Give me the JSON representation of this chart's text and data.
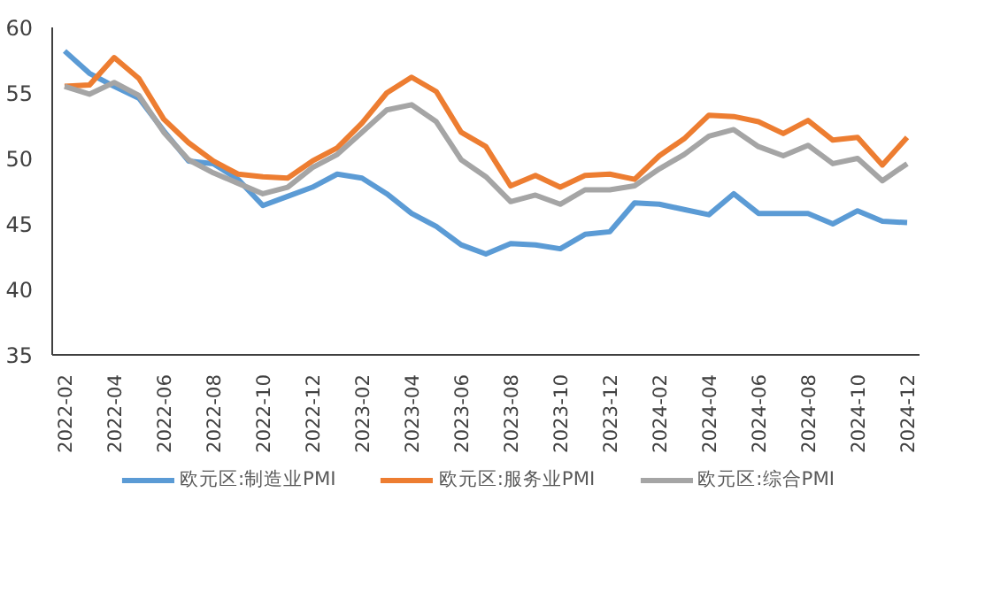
{
  "chart_data": {
    "type": "line",
    "categories": [
      "2022-02",
      null,
      "2022-04",
      null,
      "2022-06",
      null,
      "2022-08",
      null,
      "2022-10",
      null,
      "2022-12",
      null,
      "2023-02",
      null,
      "2023-04",
      null,
      "2023-06",
      null,
      "2023-08",
      null,
      "2023-10",
      null,
      "2023-12",
      null,
      "2024-02",
      null,
      "2024-04",
      null,
      "2024-06",
      null,
      "2024-08",
      null,
      "2024-10",
      null,
      "2024-12"
    ],
    "series": [
      {
        "name": "欧元区:制造业PMI",
        "color": "#5b9bd5",
        "values": [
          58.2,
          56.5,
          55.5,
          54.6,
          52.1,
          49.8,
          49.6,
          48.4,
          46.4,
          47.1,
          47.8,
          48.8,
          48.5,
          47.3,
          45.8,
          44.8,
          43.4,
          42.7,
          43.5,
          43.4,
          43.1,
          44.2,
          44.4,
          46.6,
          46.5,
          46.1,
          45.7,
          47.3,
          45.8,
          45.8,
          45.8,
          45.0,
          46.0,
          45.2,
          45.1
        ]
      },
      {
        "name": "欧元区:服务业PMI",
        "color": "#ed7d31",
        "values": [
          55.5,
          55.6,
          57.7,
          56.1,
          53.0,
          51.2,
          49.8,
          48.8,
          48.6,
          48.5,
          49.8,
          50.8,
          52.7,
          55.0,
          56.2,
          55.1,
          52.0,
          50.9,
          47.9,
          48.7,
          47.8,
          48.7,
          48.8,
          48.4,
          50.2,
          51.5,
          53.3,
          53.2,
          52.8,
          51.9,
          52.9,
          51.4,
          51.6,
          49.5,
          51.6
        ]
      },
      {
        "name": "欧元区:综合PMI",
        "color": "#a5a5a5",
        "values": [
          55.5,
          54.9,
          55.8,
          54.8,
          52.0,
          49.9,
          48.9,
          48.1,
          47.3,
          47.8,
          49.3,
          50.3,
          52.0,
          53.7,
          54.1,
          52.8,
          49.9,
          48.6,
          46.7,
          47.2,
          46.5,
          47.6,
          47.6,
          47.9,
          49.2,
          50.3,
          51.7,
          52.2,
          50.9,
          50.2,
          51.0,
          49.6,
          50.0,
          48.3,
          49.6
        ]
      }
    ],
    "ylim": [
      35,
      60
    ],
    "yticks": [
      35,
      40,
      45,
      50,
      55,
      60
    ],
    "legend": "bottom"
  }
}
